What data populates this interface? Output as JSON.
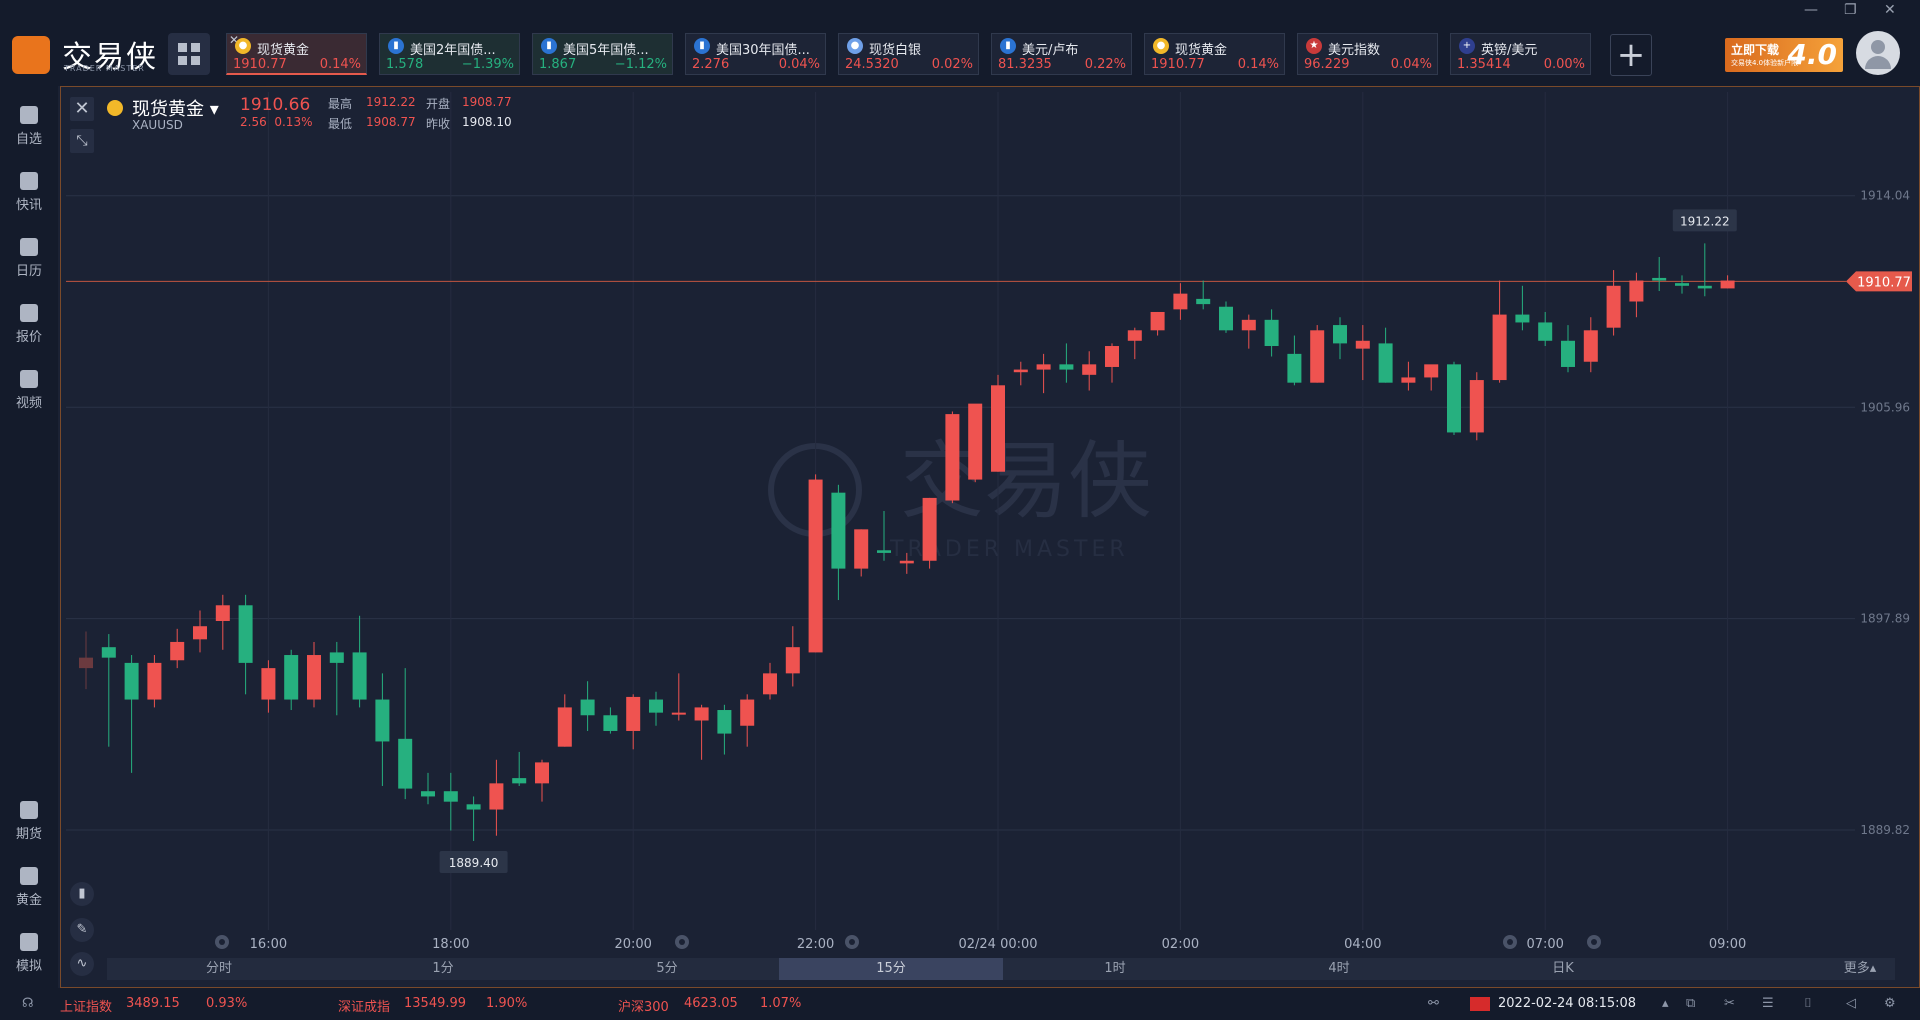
{
  "app": {
    "brand": "交易侠",
    "brand_sub": "TRADER MASTER",
    "promo_title": "立即下载",
    "promo_sub": "交易侠4.0体验新户限",
    "promo_num": "4.0",
    "window_controls": [
      "—",
      "❐",
      "✕"
    ]
  },
  "quote_tabs": [
    {
      "name": "现货黄金",
      "price": "1910.77",
      "change": "0.14%",
      "dir": "up",
      "icon": "gold-coin-icon",
      "active": true
    },
    {
      "name": "美国2年国债...",
      "price": "1.578",
      "change": "−1.39%",
      "dir": "down",
      "icon": "bar-chart-icon"
    },
    {
      "name": "美国5年国债...",
      "price": "1.867",
      "change": "−1.12%",
      "dir": "down",
      "icon": "bar-chart-icon"
    },
    {
      "name": "美国30年国债...",
      "price": "2.276",
      "change": "0.04%",
      "dir": "up",
      "icon": "bar-chart-icon"
    },
    {
      "name": "现货白银",
      "price": "24.5320",
      "change": "0.02%",
      "dir": "up",
      "icon": "silver-coin-icon"
    },
    {
      "name": "美元/卢布",
      "price": "81.3235",
      "change": "0.22%",
      "dir": "up",
      "icon": "bar-chart-icon"
    },
    {
      "name": "现货黄金",
      "price": "1910.77",
      "change": "0.14%",
      "dir": "up",
      "icon": "gold-coin-icon"
    },
    {
      "name": "美元指数",
      "price": "96.229",
      "change": "0.04%",
      "dir": "up",
      "icon": "us-flag-icon"
    },
    {
      "name": "英镑/美元",
      "price": "1.35414",
      "change": "0.00%",
      "dir": "up",
      "icon": "uk-flag-icon"
    }
  ],
  "sidebar": {
    "top": [
      {
        "label": "自选",
        "icon": "bookmark-icon"
      },
      {
        "label": "快讯",
        "icon": "news-icon"
      },
      {
        "label": "日历",
        "icon": "calendar-icon"
      },
      {
        "label": "报价",
        "icon": "quote-chart-icon"
      },
      {
        "label": "视频",
        "icon": "video-icon"
      }
    ],
    "bottom": [
      {
        "label": "期货",
        "icon": "futures-icon"
      },
      {
        "label": "黄金",
        "icon": "gold-icon"
      },
      {
        "label": "模拟",
        "icon": "wallet-icon"
      }
    ]
  },
  "symbol": {
    "name": "现货黄金",
    "code": "XAUUSD",
    "price": "1910.66",
    "change": "2.56",
    "change_pct": "0.13%",
    "high_label": "最高",
    "high": "1912.22",
    "open_label": "开盘",
    "open": "1908.77",
    "low_label": "最低",
    "low": "1908.77",
    "prev_label": "昨收",
    "prev": "1908.10"
  },
  "periods": [
    "分时",
    "1分",
    "5分",
    "15分",
    "1时",
    "4时",
    "日K",
    "更多▴"
  ],
  "active_period": "15分",
  "watermark": {
    "brand": "交易侠",
    "sub": "TRADER MASTER"
  },
  "chart_data": {
    "type": "candlestick",
    "y_ticks": [
      1914.04,
      1905.96,
      1897.89,
      1889.82
    ],
    "ylim": [
      1886.0,
      1918.0
    ],
    "x_ticks": [
      "16:00",
      "18:00",
      "20:00",
      "22:00",
      "02/24 00:00",
      "02:00",
      "04:00",
      "07:00",
      "09:00"
    ],
    "current_price": "1910.77",
    "max_label": "1912.22",
    "min_label": "1889.40",
    "colors": {
      "up": "#ef5350",
      "down": "#26b07f"
    },
    "candles": [
      [
        1896.4,
        1897.4,
        1895.2,
        1896.0
      ],
      [
        1896.8,
        1897.3,
        1893.0,
        1896.4
      ],
      [
        1896.2,
        1896.5,
        1892.0,
        1894.8
      ],
      [
        1894.8,
        1896.5,
        1894.5,
        1896.2
      ],
      [
        1896.3,
        1897.5,
        1896.0,
        1897.0
      ],
      [
        1897.1,
        1898.2,
        1896.6,
        1897.6
      ],
      [
        1897.8,
        1898.8,
        1896.7,
        1898.4
      ],
      [
        1898.4,
        1898.8,
        1895.0,
        1896.2
      ],
      [
        1894.8,
        1896.3,
        1894.3,
        1896.0
      ],
      [
        1896.5,
        1896.7,
        1894.4,
        1894.8
      ],
      [
        1894.8,
        1897.0,
        1894.5,
        1896.5
      ],
      [
        1896.6,
        1897.0,
        1894.2,
        1896.2
      ],
      [
        1896.6,
        1898.0,
        1894.5,
        1894.8
      ],
      [
        1894.8,
        1895.8,
        1891.5,
        1893.2
      ],
      [
        1893.3,
        1896.0,
        1891.0,
        1891.4
      ],
      [
        1891.3,
        1892.0,
        1890.8,
        1891.1
      ],
      [
        1891.3,
        1892.0,
        1889.8,
        1890.9
      ],
      [
        1890.8,
        1891.1,
        1889.4,
        1890.6
      ],
      [
        1890.6,
        1892.5,
        1889.6,
        1891.6
      ],
      [
        1891.8,
        1892.8,
        1891.5,
        1891.6
      ],
      [
        1891.6,
        1892.5,
        1890.9,
        1892.4
      ],
      [
        1893.0,
        1895.0,
        1893.0,
        1894.5
      ],
      [
        1894.8,
        1895.5,
        1893.6,
        1894.2
      ],
      [
        1894.2,
        1894.5,
        1893.5,
        1893.6
      ],
      [
        1893.6,
        1895.0,
        1892.9,
        1894.9
      ],
      [
        1894.8,
        1895.1,
        1893.8,
        1894.3
      ],
      [
        1894.3,
        1895.8,
        1894.0,
        1894.3
      ],
      [
        1894.0,
        1894.6,
        1892.5,
        1894.5
      ],
      [
        1894.4,
        1894.6,
        1892.7,
        1893.5
      ],
      [
        1893.8,
        1895.0,
        1893.0,
        1894.8
      ],
      [
        1895.0,
        1896.2,
        1894.8,
        1895.8
      ],
      [
        1895.8,
        1897.6,
        1895.3,
        1896.8
      ],
      [
        1896.6,
        1903.4,
        1896.6,
        1903.2
      ],
      [
        1902.7,
        1903.0,
        1898.6,
        1899.8
      ],
      [
        1899.8,
        1901.3,
        1899.5,
        1901.3
      ],
      [
        1900.5,
        1902.0,
        1900.1,
        1900.4
      ],
      [
        1900.0,
        1900.4,
        1899.6,
        1900.1
      ],
      [
        1900.1,
        1902.5,
        1899.8,
        1902.5
      ],
      [
        1902.4,
        1905.8,
        1902.3,
        1905.7
      ],
      [
        1903.2,
        1906.0,
        1903.1,
        1906.1
      ],
      [
        1903.5,
        1907.2,
        1903.5,
        1906.8
      ],
      [
        1907.3,
        1907.7,
        1906.8,
        1907.4
      ],
      [
        1907.4,
        1908.0,
        1906.5,
        1907.6
      ],
      [
        1907.6,
        1908.4,
        1906.9,
        1907.4
      ],
      [
        1907.2,
        1908.1,
        1906.6,
        1907.6
      ],
      [
        1907.5,
        1908.4,
        1906.9,
        1908.3
      ],
      [
        1908.5,
        1909.0,
        1907.8,
        1908.9
      ],
      [
        1908.9,
        1909.6,
        1908.7,
        1909.6
      ],
      [
        1909.7,
        1910.7,
        1909.3,
        1910.3
      ],
      [
        1910.1,
        1910.8,
        1909.7,
        1909.9
      ],
      [
        1909.8,
        1910.0,
        1908.8,
        1908.9
      ],
      [
        1908.9,
        1909.5,
        1908.2,
        1909.3
      ],
      [
        1909.3,
        1909.7,
        1907.9,
        1908.3
      ],
      [
        1908.0,
        1908.7,
        1906.8,
        1906.9
      ],
      [
        1906.9,
        1909.1,
        1906.9,
        1908.9
      ],
      [
        1909.1,
        1909.4,
        1907.8,
        1908.4
      ],
      [
        1908.2,
        1909.1,
        1907.0,
        1908.5
      ],
      [
        1908.4,
        1909.0,
        1906.9,
        1906.9
      ],
      [
        1906.9,
        1907.7,
        1906.6,
        1907.1
      ],
      [
        1907.1,
        1907.5,
        1906.6,
        1907.6
      ],
      [
        1907.6,
        1907.7,
        1904.9,
        1905.0
      ],
      [
        1905.0,
        1907.3,
        1904.7,
        1907.0
      ],
      [
        1907.0,
        1910.8,
        1906.9,
        1909.5
      ],
      [
        1909.5,
        1910.6,
        1908.9,
        1909.2
      ],
      [
        1909.2,
        1909.6,
        1908.3,
        1908.5
      ],
      [
        1908.5,
        1909.1,
        1907.3,
        1907.5
      ],
      [
        1907.7,
        1909.4,
        1907.3,
        1908.9
      ],
      [
        1909.0,
        1911.2,
        1908.7,
        1910.6
      ],
      [
        1910.0,
        1911.1,
        1909.4,
        1910.8
      ],
      [
        1910.9,
        1911.7,
        1910.4,
        1910.8
      ],
      [
        1910.7,
        1911.0,
        1910.3,
        1910.6
      ],
      [
        1910.6,
        1912.22,
        1910.2,
        1910.5
      ],
      [
        1910.5,
        1911.0,
        1910.5,
        1910.8
      ]
    ]
  },
  "status": {
    "indices": [
      {
        "name": "上证指数",
        "value": "3489.15",
        "change": "0.93%"
      },
      {
        "name": "深证成指",
        "value": "13549.99",
        "change": "1.90%"
      },
      {
        "name": "沪深300",
        "value": "4623.05",
        "change": "1.07%"
      }
    ],
    "datetime": "2022-02-24 08:15:08"
  }
}
